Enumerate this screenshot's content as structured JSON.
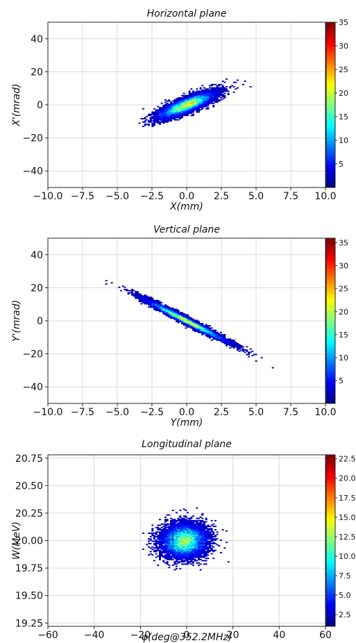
{
  "chart_data": [
    {
      "type": "heatmap",
      "title": "Horizontal plane",
      "xlabel": "X(mm)",
      "ylabel": "X'(mrad)",
      "xlim": [
        -10,
        10
      ],
      "ylim": [
        -50,
        50
      ],
      "xticks": [
        "−10.0",
        "−7.5",
        "−5.0",
        "−2.5",
        "0.0",
        "2.5",
        "5.0",
        "7.5",
        "10.0"
      ],
      "xtick_values": [
        -10,
        -7.5,
        -5,
        -2.5,
        0,
        2.5,
        5,
        7.5,
        10
      ],
      "yticks": [
        "−40",
        "−20",
        "0",
        "20",
        "40"
      ],
      "ytick_values": [
        -40,
        -20,
        0,
        20,
        40
      ],
      "colorbar": {
        "min": 0,
        "max": 35,
        "ticks": [
          "5",
          "10",
          "15",
          "20",
          "25",
          "30",
          "35"
        ],
        "tick_values": [
          5,
          10,
          15,
          20,
          25,
          30,
          35
        ]
      },
      "distribution": {
        "center": [
          0.0,
          0.0
        ],
        "sigma_x": 1.0,
        "sigma_y": 3.9,
        "correlation": 0.82,
        "count": 9000
      },
      "grid": true
    },
    {
      "type": "heatmap",
      "title": "Vertical plane",
      "xlabel": "Y(mm)",
      "ylabel": "Y'(mrad)",
      "xlim": [
        -10,
        10
      ],
      "ylim": [
        -50,
        50
      ],
      "xticks": [
        "−10.0",
        "−7.5",
        "−5.0",
        "−2.5",
        "0.0",
        "2.5",
        "5.0",
        "7.5",
        "10.0"
      ],
      "xtick_values": [
        -10,
        -7.5,
        -5,
        -2.5,
        0,
        2.5,
        5,
        7.5,
        10
      ],
      "yticks": [
        "−40",
        "−20",
        "0",
        "20",
        "40"
      ],
      "ytick_values": [
        -40,
        -20,
        0,
        20,
        40
      ],
      "colorbar": {
        "min": 0,
        "max": 36,
        "ticks": [
          "5",
          "10",
          "15",
          "20",
          "25",
          "30",
          "35"
        ],
        "tick_values": [
          5,
          10,
          15,
          20,
          25,
          30,
          35
        ]
      },
      "distribution": {
        "center": [
          0.0,
          0.0
        ],
        "sigma_x": 1.45,
        "sigma_y": 6.3,
        "correlation": -0.985,
        "count": 9000
      },
      "grid": true
    },
    {
      "type": "heatmap",
      "title": "Longitudinal plane",
      "xlabel": "φ(deg@352.2MHz)",
      "ylabel": "W(MeV)",
      "xlim": [
        -60,
        60
      ],
      "ylim": [
        19.22,
        20.78
      ],
      "xticks": [
        "−60",
        "−40",
        "−20",
        "0",
        "20",
        "40",
        "60"
      ],
      "xtick_values": [
        -60,
        -40,
        -20,
        0,
        20,
        40,
        60
      ],
      "yticks": [
        "19.25",
        "19.50",
        "19.75",
        "20.00",
        "20.25",
        "20.50",
        "20.75"
      ],
      "ytick_values": [
        19.25,
        19.5,
        19.75,
        20.0,
        20.25,
        20.5,
        20.75
      ],
      "colorbar": {
        "min": 1,
        "max": 23,
        "ticks": [
          "2.5",
          "5.0",
          "7.5",
          "10.0",
          "12.5",
          "15.0",
          "17.5",
          "20.0",
          "22.5"
        ],
        "tick_values": [
          2.5,
          5,
          7.5,
          10,
          12.5,
          15,
          17.5,
          20,
          22.5
        ]
      },
      "distribution": {
        "center": [
          -1.0,
          20.0
        ],
        "sigma_x": 4.8,
        "sigma_y": 0.075,
        "correlation": 0.05,
        "count": 9000
      },
      "grid": true
    }
  ]
}
